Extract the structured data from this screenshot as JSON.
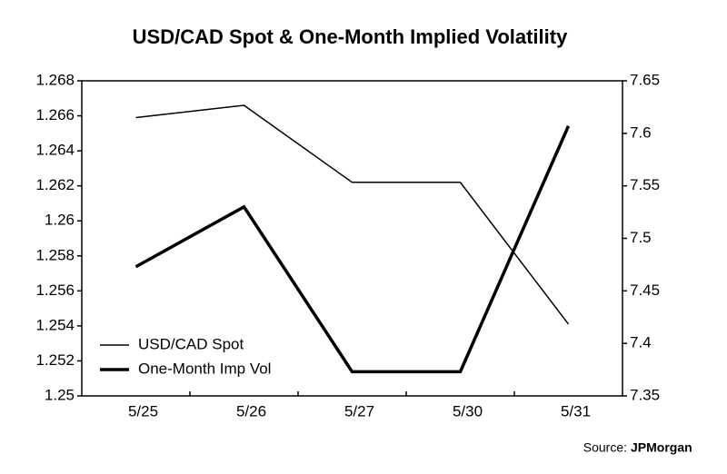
{
  "chart_data": {
    "type": "line",
    "title": "USD/CAD Spot & One-Month Implied Volatility",
    "source_label": "Source:",
    "source": "JPMorgan",
    "categories": [
      "5/25",
      "5/26",
      "5/27",
      "5/30",
      "5/31"
    ],
    "series": [
      {
        "name": "USD/CAD Spot",
        "color": "#000000",
        "line_width": 1.5,
        "axis": "y",
        "values": [
          1.2659,
          1.2666,
          1.2622,
          1.2622,
          1.2541
        ]
      },
      {
        "name": "One-Month Imp Vol",
        "color": "#000000",
        "line_width": 3.5,
        "axis": "y2",
        "values": [
          7.473,
          7.53,
          7.373,
          7.373,
          7.607
        ]
      }
    ],
    "ylim": [
      1.25,
      1.268
    ],
    "yticks": [
      1.25,
      1.252,
      1.254,
      1.256,
      1.258,
      1.26,
      1.262,
      1.264,
      1.266,
      1.268
    ],
    "y2lim": [
      7.35,
      7.65
    ],
    "y2ticks": [
      7.35,
      7.4,
      7.45,
      7.5,
      7.55,
      7.6,
      7.65
    ],
    "legend": "lower left"
  }
}
